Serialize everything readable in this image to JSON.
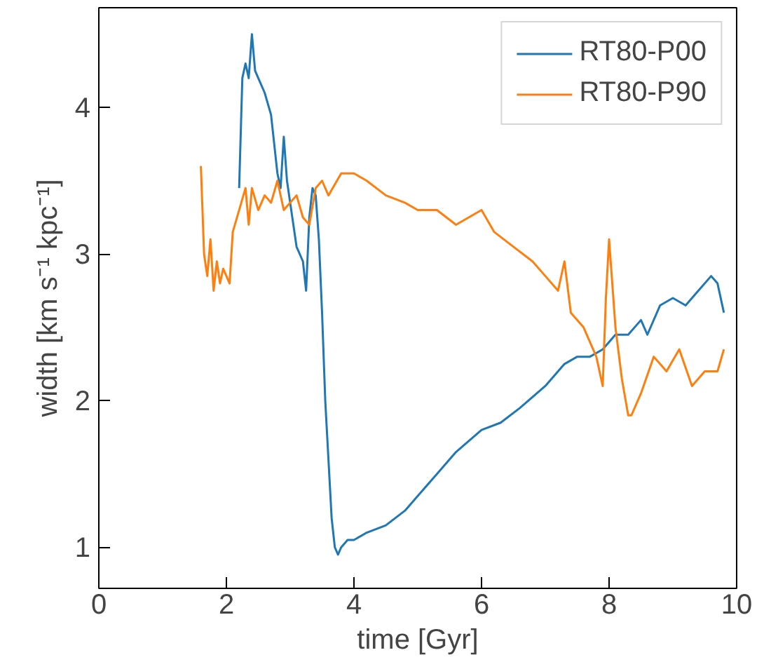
{
  "chart_data": {
    "type": "line",
    "xlabel": "time [Gyr]",
    "ylabel": "width [km s⁻¹ kpc⁻¹]",
    "xlim": [
      0,
      10
    ],
    "ylim": [
      0.72,
      4.68
    ],
    "xticks": [
      0,
      2,
      4,
      6,
      8,
      10
    ],
    "yticks": [
      1,
      2,
      3,
      4
    ],
    "grid": false,
    "legend": "top right",
    "marker": "none",
    "line_style": "solid",
    "series": [
      {
        "name": "RT80-P00",
        "color": "#1f77b4",
        "x": [
          2.2,
          2.25,
          2.3,
          2.35,
          2.4,
          2.45,
          2.5,
          2.6,
          2.7,
          2.8,
          2.85,
          2.9,
          2.95,
          3.0,
          3.1,
          3.2,
          3.25,
          3.3,
          3.35,
          3.4,
          3.45,
          3.5,
          3.55,
          3.6,
          3.65,
          3.7,
          3.75,
          3.8,
          3.9,
          4.0,
          4.2,
          4.5,
          4.8,
          5.0,
          5.3,
          5.6,
          6.0,
          6.3,
          6.6,
          7.0,
          7.3,
          7.5,
          7.7,
          7.9,
          8.1,
          8.3,
          8.5,
          8.6,
          8.8,
          9.0,
          9.2,
          9.4,
          9.6,
          9.7,
          9.8
        ],
        "values": [
          3.45,
          4.2,
          4.3,
          4.2,
          4.5,
          4.25,
          4.2,
          4.1,
          3.95,
          3.55,
          3.45,
          3.8,
          3.5,
          3.35,
          3.05,
          2.95,
          2.75,
          3.25,
          3.45,
          3.4,
          3.1,
          2.6,
          2.0,
          1.6,
          1.2,
          1.0,
          0.95,
          1.0,
          1.05,
          1.05,
          1.1,
          1.15,
          1.25,
          1.35,
          1.5,
          1.65,
          1.8,
          1.85,
          1.95,
          2.1,
          2.25,
          2.3,
          2.3,
          2.35,
          2.45,
          2.45,
          2.55,
          2.45,
          2.65,
          2.7,
          2.65,
          2.75,
          2.85,
          2.8,
          2.6
        ]
      },
      {
        "name": "RT80-P90",
        "color": "#ff7f0e",
        "x": [
          1.6,
          1.65,
          1.7,
          1.75,
          1.8,
          1.85,
          1.9,
          1.95,
          2.0,
          2.05,
          2.1,
          2.2,
          2.3,
          2.35,
          2.4,
          2.5,
          2.6,
          2.7,
          2.8,
          2.9,
          3.0,
          3.1,
          3.2,
          3.3,
          3.4,
          3.5,
          3.6,
          3.8,
          4.0,
          4.2,
          4.5,
          4.8,
          5.0,
          5.3,
          5.6,
          5.8,
          6.0,
          6.2,
          6.5,
          6.8,
          7.0,
          7.2,
          7.3,
          7.4,
          7.6,
          7.8,
          7.9,
          7.95,
          8.0,
          8.05,
          8.1,
          8.2,
          8.3,
          8.35,
          8.5,
          8.7,
          8.9,
          9.1,
          9.3,
          9.5,
          9.7,
          9.8
        ],
        "values": [
          3.6,
          3.0,
          2.85,
          3.1,
          2.75,
          2.95,
          2.8,
          2.9,
          2.85,
          2.8,
          3.15,
          3.3,
          3.45,
          3.2,
          3.45,
          3.3,
          3.4,
          3.35,
          3.5,
          3.3,
          3.35,
          3.4,
          3.25,
          3.2,
          3.45,
          3.5,
          3.4,
          3.55,
          3.55,
          3.5,
          3.4,
          3.35,
          3.3,
          3.3,
          3.2,
          3.25,
          3.3,
          3.15,
          3.05,
          2.95,
          2.85,
          2.75,
          2.95,
          2.6,
          2.5,
          2.3,
          2.1,
          2.7,
          3.1,
          2.8,
          2.5,
          2.15,
          1.9,
          1.9,
          2.05,
          2.3,
          2.2,
          2.35,
          2.1,
          2.2,
          2.2,
          2.35
        ]
      }
    ]
  }
}
